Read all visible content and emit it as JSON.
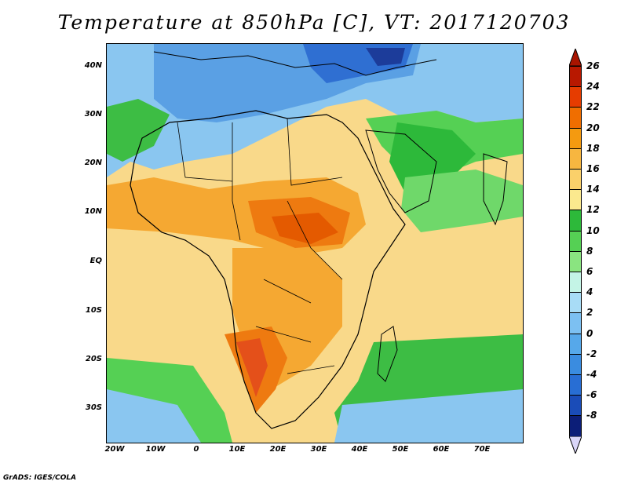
{
  "title": "Temperature at 850hPa [C], VT: 2017120703",
  "footer": "GrADS: IGES/COLA",
  "lat_labels": [
    "40N",
    "30N",
    "20N",
    "10N",
    "EQ",
    "10S",
    "20S",
    "30S"
  ],
  "lon_labels": [
    "20W",
    "10W",
    "0",
    "10E",
    "20E",
    "30E",
    "40E",
    "50E",
    "60E",
    "70E"
  ],
  "colorbar": {
    "labels": [
      "26",
      "24",
      "22",
      "20",
      "18",
      "16",
      "14",
      "12",
      "10",
      "8",
      "6",
      "4",
      "2",
      "0",
      "-2",
      "-4",
      "-6",
      "-8"
    ],
    "colors": [
      "#b81800",
      "#e63c00",
      "#f06e00",
      "#f49a10",
      "#f7b640",
      "#fad06a",
      "#fbe98e",
      "#2db93a",
      "#55d054",
      "#8ae480",
      "#c4f4e6",
      "#a8dcf6",
      "#7cc0f2",
      "#56a8ea",
      "#3a8ce0",
      "#286ed4",
      "#1a4cb8",
      "#0c1e78"
    ],
    "top_arrow_color": "#a81400",
    "bottom_arrow_color": "#dad6f8"
  }
}
